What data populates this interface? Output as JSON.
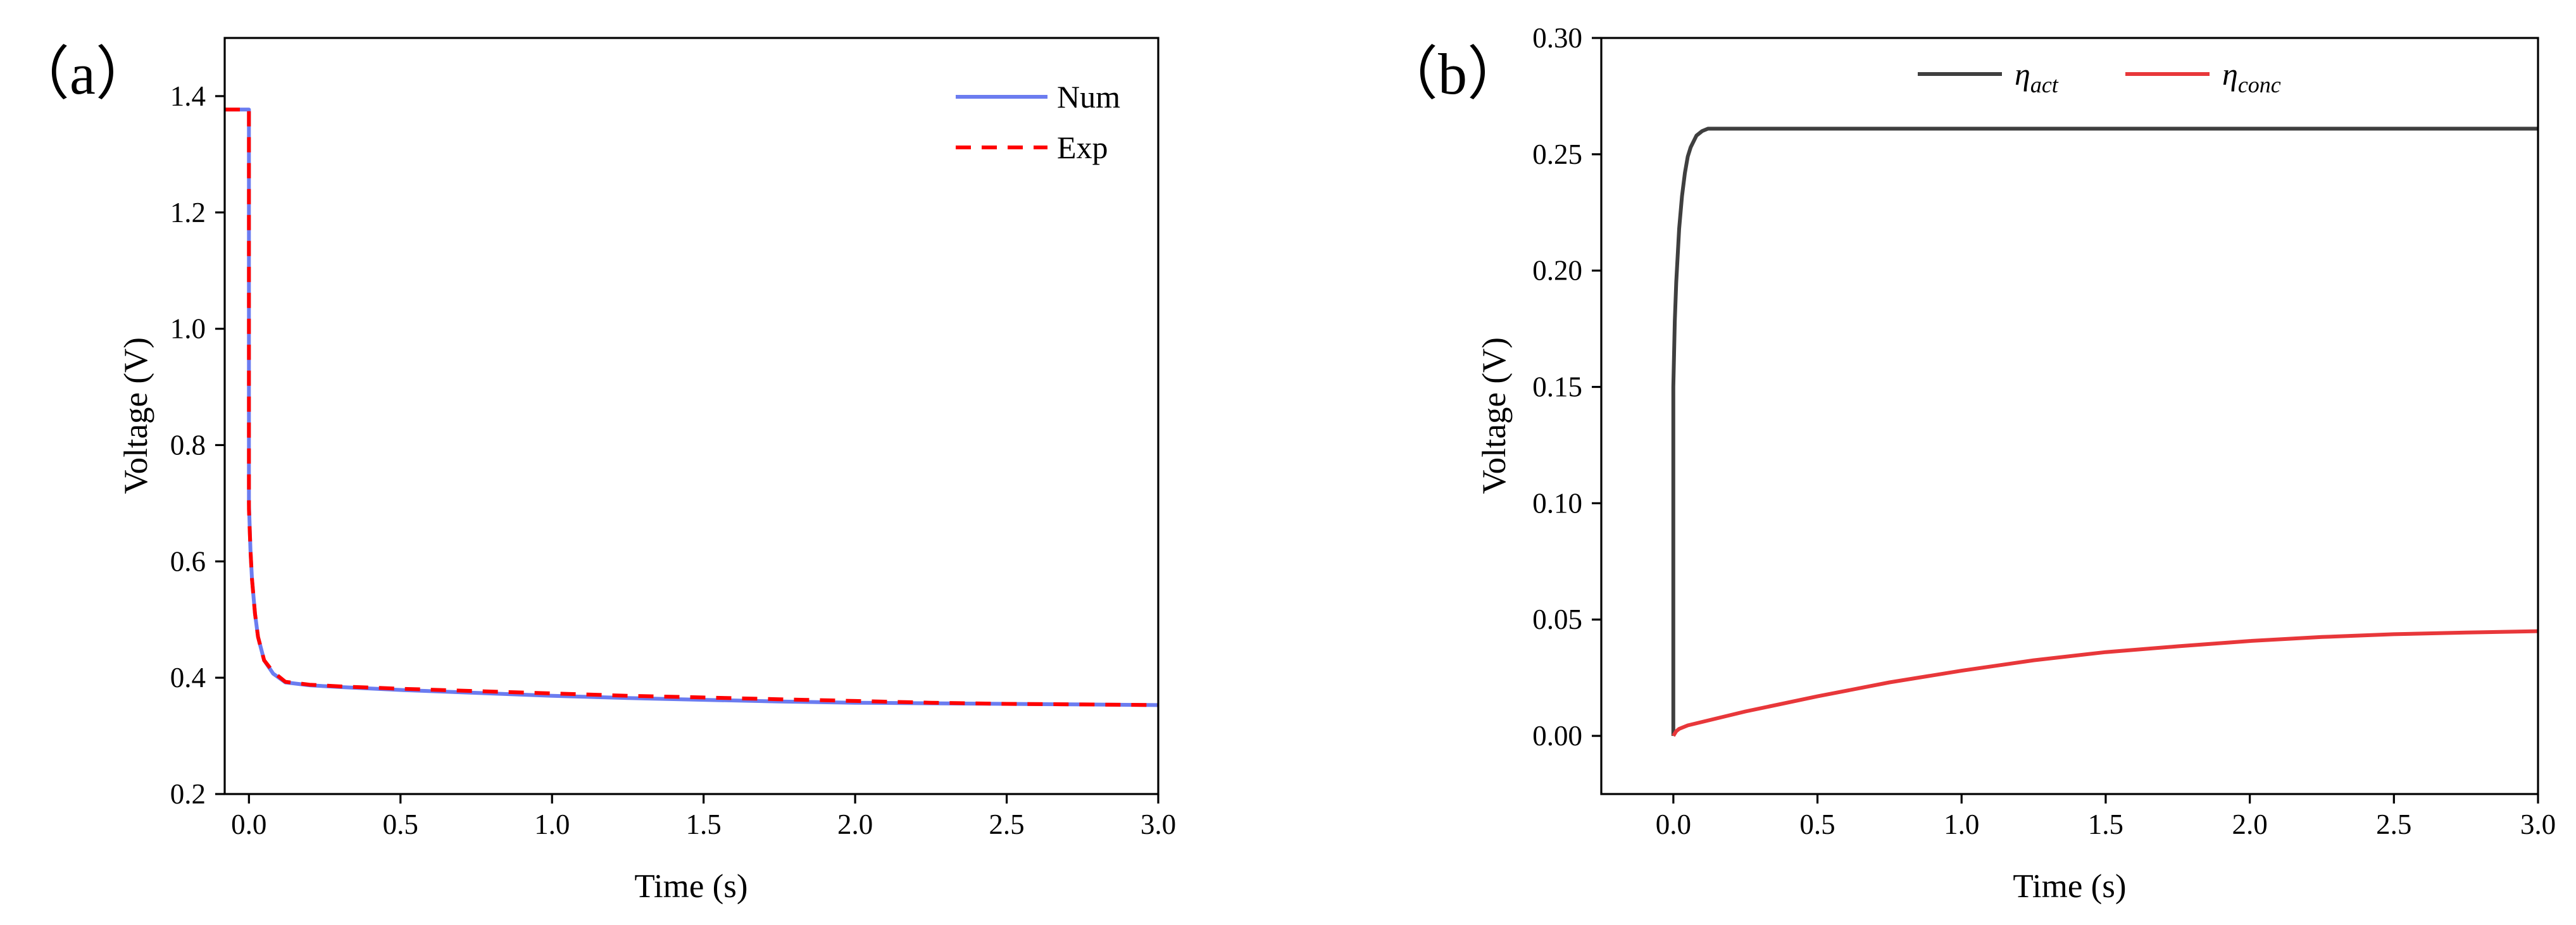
{
  "chart_data": [
    {
      "panel_label": "（a）",
      "type": "line",
      "title": "",
      "xlabel": "Time (s)",
      "ylabel": "Voltage (V)",
      "xlim": [
        -0.08,
        3.0
      ],
      "ylim": [
        0.2,
        1.5
      ],
      "xticks": [
        0.0,
        0.5,
        1.0,
        1.5,
        2.0,
        2.5,
        3.0
      ],
      "xtick_labels": [
        "0.0",
        "0.5",
        "1.0",
        "1.5",
        "2.0",
        "2.5",
        "3.0"
      ],
      "yticks": [
        0.2,
        0.4,
        0.6,
        0.8,
        1.0,
        1.2,
        1.4
      ],
      "ytick_labels": [
        "0.2",
        "0.4",
        "0.6",
        "0.8",
        "1.0",
        "1.2",
        "1.4"
      ],
      "legend": {
        "position": "top-right",
        "entries": [
          "Num",
          "Exp"
        ]
      },
      "series": [
        {
          "name": "Num",
          "color": "#6b7cf0",
          "style": "solid",
          "x": [
            -0.08,
            0.0,
            0.0,
            0.005,
            0.01,
            0.02,
            0.03,
            0.05,
            0.08,
            0.12,
            0.2,
            0.3,
            0.5,
            0.75,
            1.0,
            1.25,
            1.5,
            1.75,
            2.0,
            2.25,
            2.5,
            2.75,
            3.0
          ],
          "y": [
            1.377,
            1.377,
            0.7,
            0.62,
            0.57,
            0.51,
            0.47,
            0.43,
            0.407,
            0.392,
            0.387,
            0.384,
            0.379,
            0.374,
            0.369,
            0.365,
            0.362,
            0.359,
            0.357,
            0.356,
            0.355,
            0.354,
            0.353
          ]
        },
        {
          "name": "Exp",
          "color": "#ff0000",
          "style": "dashed",
          "x": [
            -0.08,
            0.0,
            0.0,
            0.005,
            0.01,
            0.02,
            0.03,
            0.05,
            0.08,
            0.12,
            0.2,
            0.3,
            0.5,
            0.75,
            1.0,
            1.25,
            1.5,
            1.75,
            2.0,
            2.25,
            2.5,
            2.75,
            3.0
          ],
          "y": [
            1.377,
            1.377,
            0.69,
            0.62,
            0.57,
            0.51,
            0.47,
            0.43,
            0.41,
            0.393,
            0.388,
            0.385,
            0.381,
            0.377,
            0.373,
            0.369,
            0.366,
            0.363,
            0.36,
            0.357,
            0.355,
            0.354,
            0.353
          ]
        }
      ]
    },
    {
      "panel_label": "（b）",
      "type": "line",
      "title": "",
      "xlabel": "Time (s)",
      "ylabel": "Voltage (V)",
      "xlim": [
        -0.25,
        3.0
      ],
      "ylim": [
        -0.025,
        0.3
      ],
      "xticks": [
        0.0,
        0.5,
        1.0,
        1.5,
        2.0,
        2.5,
        3.0
      ],
      "xtick_labels": [
        "0.0",
        "0.5",
        "1.0",
        "1.5",
        "2.0",
        "2.5",
        "3.0"
      ],
      "yticks": [
        0.0,
        0.05,
        0.1,
        0.15,
        0.2,
        0.25,
        0.3
      ],
      "ytick_labels": [
        "0.00",
        "0.05",
        "0.10",
        "0.15",
        "0.20",
        "0.25",
        "0.30"
      ],
      "legend": {
        "position": "top-center",
        "entries": [
          "η_act",
          "η_conc"
        ]
      },
      "series": [
        {
          "name": "η_act",
          "symbol": "η",
          "subscript": "act",
          "color": "#3f3f3f",
          "style": "solid",
          "x": [
            0.0,
            0.0,
            0.005,
            0.01,
            0.02,
            0.03,
            0.04,
            0.05,
            0.06,
            0.08,
            0.1,
            0.12,
            0.15,
            0.2,
            0.5,
            1.0,
            2.0,
            3.0
          ],
          "y": [
            0.0,
            0.15,
            0.178,
            0.195,
            0.218,
            0.232,
            0.242,
            0.249,
            0.253,
            0.258,
            0.26,
            0.261,
            0.261,
            0.261,
            0.261,
            0.261,
            0.261,
            0.261
          ]
        },
        {
          "name": "η_conc",
          "symbol": "η",
          "subscript": "conc",
          "color": "#e8373a",
          "style": "solid",
          "x": [
            0.0,
            0.01,
            0.02,
            0.05,
            0.1,
            0.25,
            0.5,
            0.75,
            1.0,
            1.25,
            1.5,
            1.75,
            2.0,
            2.25,
            2.5,
            2.75,
            3.0
          ],
          "y": [
            0.0,
            0.002,
            0.003,
            0.0045,
            0.006,
            0.0105,
            0.017,
            0.023,
            0.028,
            0.0325,
            0.036,
            0.0385,
            0.0408,
            0.0425,
            0.0437,
            0.0444,
            0.045
          ]
        }
      ]
    }
  ]
}
